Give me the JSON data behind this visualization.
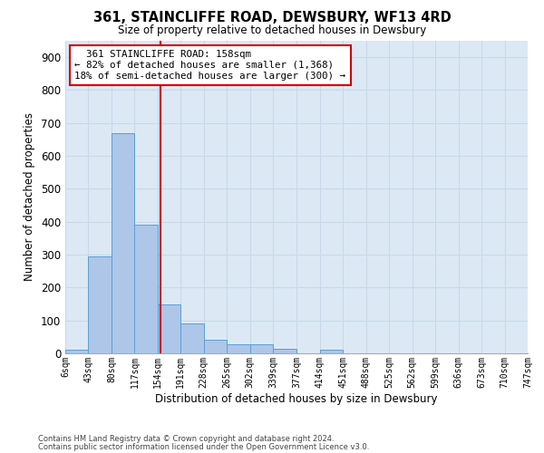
{
  "title": "361, STAINCLIFFE ROAD, DEWSBURY, WF13 4RD",
  "subtitle": "Size of property relative to detached houses in Dewsbury",
  "xlabel": "Distribution of detached houses by size in Dewsbury",
  "ylabel": "Number of detached properties",
  "footnote1": "Contains HM Land Registry data © Crown copyright and database right 2024.",
  "footnote2": "Contains public sector information licensed under the Open Government Licence v3.0.",
  "bin_edges": [
    6,
    43,
    80,
    117,
    154,
    191,
    228,
    265,
    302,
    339,
    377,
    414,
    451,
    488,
    525,
    562,
    599,
    636,
    673,
    710,
    747
  ],
  "bin_labels": [
    "6sqm",
    "43sqm",
    "80sqm",
    "117sqm",
    "154sqm",
    "191sqm",
    "228sqm",
    "265sqm",
    "302sqm",
    "339sqm",
    "377sqm",
    "414sqm",
    "451sqm",
    "488sqm",
    "525sqm",
    "562sqm",
    "599sqm",
    "636sqm",
    "673sqm",
    "710sqm",
    "747sqm"
  ],
  "bar_heights": [
    10,
    295,
    670,
    390,
    150,
    90,
    40,
    27,
    27,
    15,
    0,
    10,
    0,
    0,
    0,
    0,
    0,
    0,
    0,
    0
  ],
  "bar_color": "#aec6e8",
  "bar_edge_color": "#5a9fd4",
  "vline_x": 158,
  "vline_color": "#cc0000",
  "ylim": [
    0,
    950
  ],
  "yticks": [
    0,
    100,
    200,
    300,
    400,
    500,
    600,
    700,
    800,
    900
  ],
  "annotation_text": "  361 STAINCLIFFE ROAD: 158sqm\n← 82% of detached houses are smaller (1,368)\n18% of semi-detached houses are larger (300) →",
  "annotation_box_color": "#ffffff",
  "annotation_box_edge": "#cc0000",
  "grid_color": "#c8d8e8",
  "bg_color": "#dce9f5"
}
